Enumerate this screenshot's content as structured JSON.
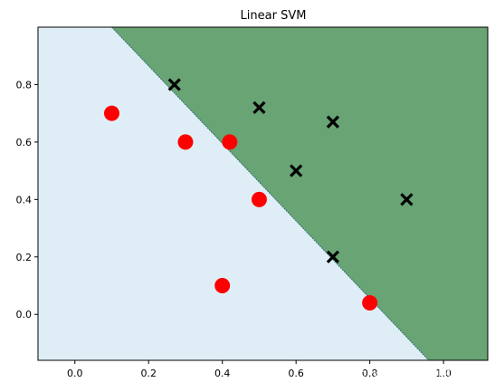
{
  "chart_data": {
    "type": "scatter",
    "title": "Linear SVM",
    "xlabel": "",
    "ylabel": "",
    "xlim": [
      -0.1,
      1.12
    ],
    "ylim": [
      -0.16,
      1.0
    ],
    "x_ticks": [
      "0.0",
      "0.2",
      "0.4",
      "0.6",
      "0.8",
      "1.0"
    ],
    "x_tick_values": [
      0.0,
      0.2,
      0.4,
      0.6,
      0.8,
      1.0
    ],
    "y_ticks": [
      "0.0",
      "0.2",
      "0.4",
      "0.6",
      "0.8"
    ],
    "y_tick_values": [
      0.0,
      0.2,
      0.4,
      0.6,
      0.8
    ],
    "grid": false,
    "decision_boundary": {
      "points": [
        [
          0.1,
          1.0
        ],
        [
          0.96,
          -0.16
        ]
      ],
      "region_lower_left_color": "#dfeef6",
      "region_upper_right_color": "#68a474"
    },
    "series": [
      {
        "marker": "circle",
        "color": "#ff0000",
        "points": [
          [
            0.1,
            0.7
          ],
          [
            0.3,
            0.6
          ],
          [
            0.42,
            0.6
          ],
          [
            0.5,
            0.4
          ],
          [
            0.4,
            0.1
          ],
          [
            0.8,
            0.04
          ]
        ]
      },
      {
        "marker": "x",
        "color": "#000000",
        "points": [
          [
            0.27,
            0.8
          ],
          [
            0.5,
            0.72
          ],
          [
            0.7,
            0.67
          ],
          [
            0.6,
            0.5
          ],
          [
            0.9,
            0.4
          ],
          [
            0.7,
            0.2
          ]
        ]
      }
    ]
  },
  "watermark": "CSDN @一蓑烟雨晴"
}
